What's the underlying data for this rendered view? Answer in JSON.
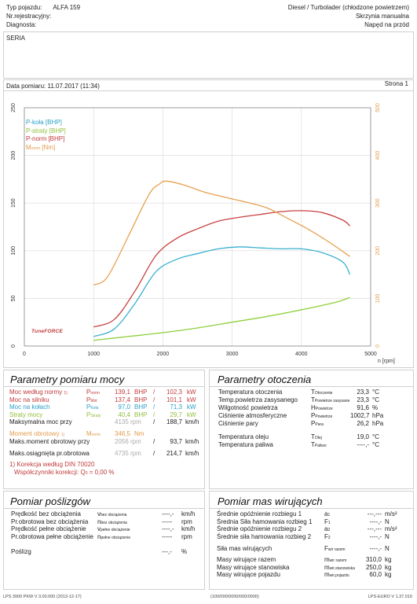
{
  "header": {
    "vehicle_type_label": "Typ pojazdu:",
    "vehicle_type_value": "ALFA 159",
    "registration_label": "Nr.rejestracyjny:",
    "diagnosis_label": "Diagnosta:",
    "engine": "Diesel / Turbolader (chłodzone powietrzem)",
    "gearbox": "Skrzynia manualna",
    "drive": "Napęd na przód"
  },
  "series_label": "SERIA",
  "measurement": {
    "date": "Data pomiaru: 11.07.2017 (11:34)",
    "page": "Strona 1"
  },
  "logo_text": "TuneFORCE",
  "chart_data": {
    "type": "line",
    "xlabel": "n [rpm]",
    "xlim": [
      0,
      5000
    ],
    "xticks": [
      "0",
      "1000",
      "2000",
      "3000",
      "4000",
      "5000"
    ],
    "ylim_left": [
      0,
      250
    ],
    "yticks_left": [
      "0",
      "50",
      "100",
      "150",
      "200",
      "250"
    ],
    "ylim_right": [
      0,
      500
    ],
    "yticks_right": [
      "0",
      "100",
      "200",
      "300",
      "400",
      "500"
    ],
    "grid": true,
    "legend_position": "top-left",
    "series": [
      {
        "name": "P-koła [BHP]",
        "color": "#3ab0d0",
        "axis": "left",
        "x": [
          1000,
          1300,
          1600,
          1900,
          2200,
          2500,
          2800,
          3100,
          3400,
          3700,
          4000,
          4300,
          4600,
          4700
        ],
        "y": [
          10,
          18,
          45,
          78,
          91,
          97,
          102,
          104,
          103,
          102,
          102,
          98,
          88,
          75
        ]
      },
      {
        "name": "P-straty [BHP]",
        "color": "#8fcf3a",
        "axis": "left",
        "x": [
          1000,
          1500,
          2000,
          2500,
          3000,
          3500,
          4000,
          4500,
          4700
        ],
        "y": [
          6,
          10,
          14,
          19,
          25,
          31,
          38,
          46,
          51
        ]
      },
      {
        "name": "P-norm [BHP]",
        "color": "#c84040",
        "axis": "left",
        "x": [
          1000,
          1300,
          1600,
          1900,
          2200,
          2500,
          2800,
          3100,
          3400,
          3700,
          4000,
          4300,
          4600,
          4700
        ],
        "y": [
          20,
          28,
          58,
          95,
          113,
          123,
          131,
          135,
          138,
          141,
          142,
          140,
          132,
          126
        ]
      },
      {
        "name": "M",
        "name_sub": "norm",
        "name_unit": " [Nm]",
        "color": "#e8a050",
        "axis": "right",
        "x": [
          1000,
          1200,
          1500,
          1800,
          1950,
          2050,
          2300,
          2600,
          2900,
          3200,
          3500,
          3800,
          4100,
          4400,
          4700
        ],
        "y": [
          128,
          145,
          230,
          318,
          340,
          346,
          338,
          323,
          312,
          302,
          290,
          268,
          245,
          218,
          188
        ]
      }
    ]
  },
  "params_measure": {
    "title": "Parametry pomiaru mocy",
    "rows": [
      {
        "label": "Moc według normy",
        "note": "1)",
        "sym": "P",
        "sub": "norm",
        "v1": "139,1",
        "u1": "BHP",
        "v2": "102,3",
        "u2": "kW",
        "color": "red"
      },
      {
        "label": "Moc na silniku",
        "note": "",
        "sym": "P",
        "sub": "Mot",
        "v1": "137,4",
        "u1": "BHP",
        "v2": "101,1",
        "u2": "kW",
        "color": "red"
      },
      {
        "label": "Moc na kołach",
        "note": "",
        "sym": "P",
        "sub": "Koła",
        "v1": "97,0",
        "u1": "BHP",
        "v2": "71,3",
        "u2": "kW",
        "color": "blue"
      },
      {
        "label": "Straty mocy",
        "note": "",
        "sym": "P",
        "sub": "Straty",
        "v1": "40,4",
        "u1": "BHP",
        "v2": "29,7",
        "u2": "kW",
        "color": "green"
      }
    ],
    "max_power": {
      "label": "Maksymalna moc przy",
      "rpm": "4135",
      "rpm_unit": "rpm",
      "speed": "188,7",
      "speed_unit": "km/h"
    },
    "torque": {
      "label": "Moment obrotowy",
      "note": "1)",
      "sym": "M",
      "sub": "norm",
      "value": "346,5",
      "unit": "Nm"
    },
    "max_torque": {
      "label": "Maks.moment obrotowy przy",
      "rpm": "2056",
      "rpm_unit": "rpm",
      "speed": "93,7",
      "speed_unit": "km/h"
    },
    "max_rpm": {
      "label": "Maks.osiągnięta pr.obrotowa",
      "rpm": "4735",
      "rpm_unit": "rpm",
      "speed": "214,7",
      "speed_unit": "km/h"
    },
    "correction": "1) Korekcja według DIN 70020",
    "coefficient_label": "Współczynniki korekcji: Q",
    "coefficient_sub": "0",
    "coefficient_value": "=   0,00 %"
  },
  "params_env": {
    "title": "Parametry otoczenia",
    "rows": [
      {
        "label": "Temperatura otoczenia",
        "sym": "T",
        "sub": "Otoczenie",
        "value": "23,3",
        "unit": "°C"
      },
      {
        "label": "Temp.powietrza zasysanego",
        "sym": "T",
        "sub": "Powietrze zasysane",
        "value": "23,3",
        "unit": "°C"
      },
      {
        "label": "Wilgotność powietrza",
        "sym": "H",
        "sub": "Powietrze",
        "value": "91,6",
        "unit": "%"
      },
      {
        "label": "Ciśnienie atmosferyczne",
        "sym": "P",
        "sub": "Powietrze",
        "value": "1002,7",
        "unit": "hPa"
      },
      {
        "label": "Ciśnienie pary",
        "sym": "P",
        "sub": "Para",
        "value": "26,2",
        "unit": "hPa"
      }
    ],
    "rows2": [
      {
        "label": "Temperatura oleju",
        "sym": "T",
        "sub": "Olej",
        "value": "19,0",
        "unit": "°C"
      },
      {
        "label": "Temperatura paliwa",
        "sym": "T",
        "sub": "Paliwo",
        "value": "----,-",
        "unit": "°C"
      }
    ]
  },
  "slip": {
    "title": "Pomiar poślizgów",
    "rows": [
      {
        "label": "Prędkość bez obciążenia",
        "sym": "v",
        "sub": "bez obciążenia",
        "value": "----,-",
        "unit": "km/h"
      },
      {
        "label": "Pr.obrotowa bez obciążenia",
        "sym": "n",
        "sub": "bez obciążenia",
        "value": "-----",
        "unit": "rpm"
      },
      {
        "label": "Prędkość pełne obciążenie",
        "sym": "v",
        "sub": "pełne obciążenie",
        "value": "----,-",
        "unit": "km/h"
      },
      {
        "label": "Pr.obrotowa pełne obciążenie",
        "sym": "n",
        "sub": "pełne obciążenie",
        "value": "-----",
        "unit": "rpm"
      }
    ],
    "slip_label": "Poślizg",
    "slip_value": "---,-",
    "slip_unit": "%"
  },
  "masses": {
    "title": "Pomiar mas wirujących",
    "rows": [
      {
        "label": "Średnie opóźnienie rozbiegu 1",
        "sym": "a",
        "sub": "1",
        "value": "---,---",
        "unit": "m/s²"
      },
      {
        "label": "Średnia Siła hamowania rozbieg 1",
        "sym": "F",
        "sub": "1",
        "value": "----,-",
        "unit": "N"
      },
      {
        "label": "Średnie opóźnienie rozbiegu 2",
        "sym": "a",
        "sub": "2",
        "value": "---,---",
        "unit": "m/s²"
      },
      {
        "label": "Średnie siła hamowania rozbieg 2",
        "sym": "F",
        "sub": "2",
        "value": "----,-",
        "unit": "N"
      }
    ],
    "force": {
      "label": "Siła mas wirujących",
      "sym": "F",
      "sub": "wir razem",
      "value": "----,-",
      "unit": "N"
    },
    "rows2": [
      {
        "label": "Masy wirujące razem",
        "sym": "m",
        "sub": "wir razem",
        "value": "310,0",
        "unit": "kg"
      },
      {
        "label": "Masy wirujące stanowiska",
        "sym": "m",
        "sub": "wir.stanowiska",
        "value": "250,0",
        "unit": "kg"
      },
      {
        "label": "Masy wirujące pojazdu",
        "sym": "m",
        "sub": "wir.pojazdu",
        "value": "60,0",
        "unit": "kg"
      }
    ]
  },
  "footer": {
    "left": "LPS 3000 PKW V 3.00.000 (2013-12-17)",
    "center": "(100/000/0000/000/0000)",
    "right": "LPS-EURO V 1.37.010"
  }
}
